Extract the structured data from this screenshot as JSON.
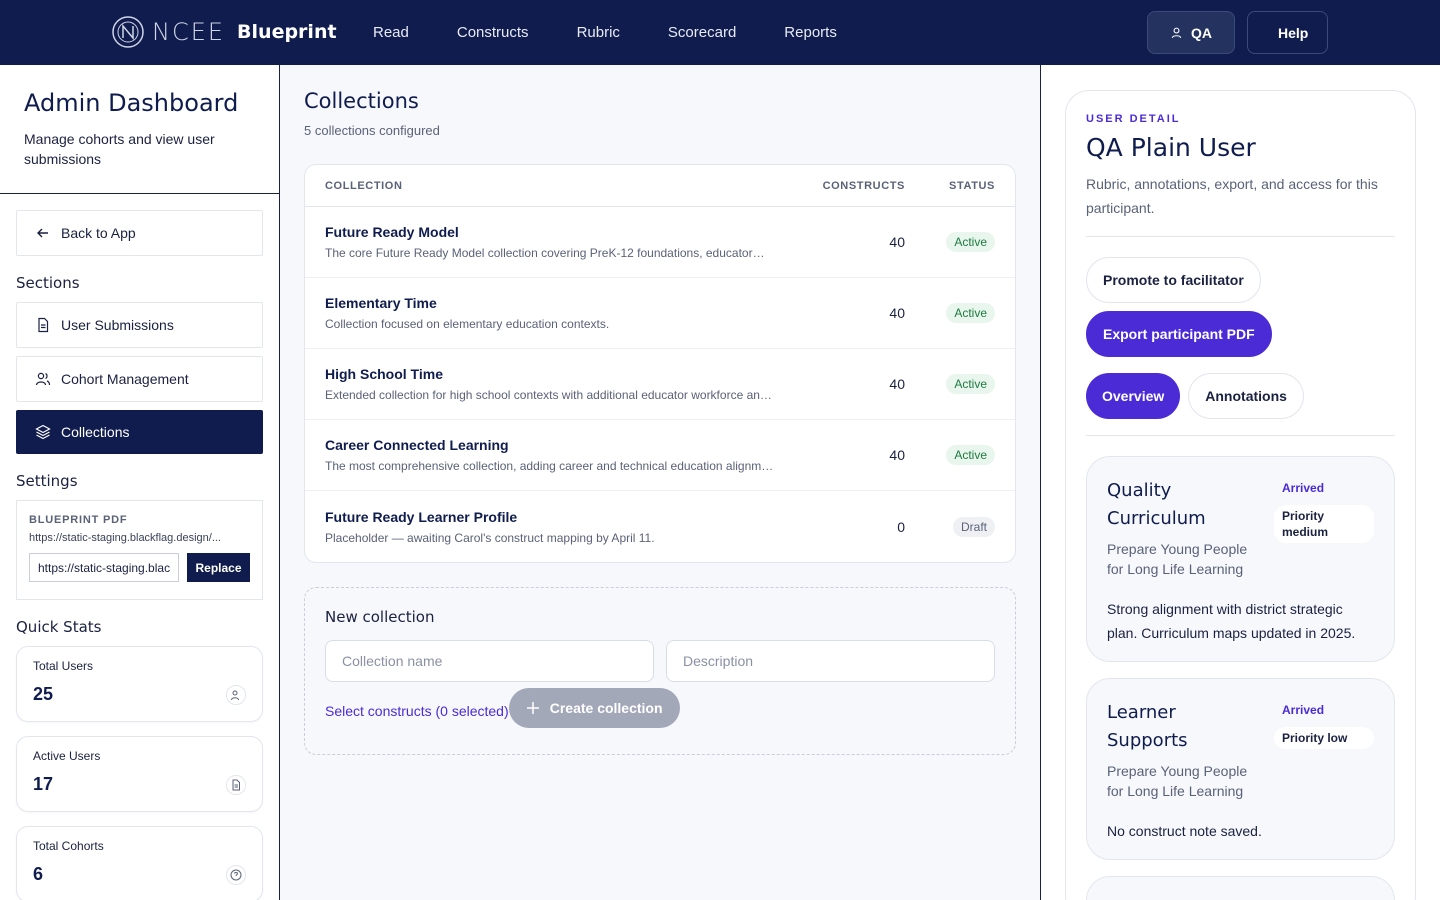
{
  "brand": {
    "ncee": "NCEE",
    "product": "Blueprint"
  },
  "nav": [
    "Read",
    "Constructs",
    "Rubric",
    "Scorecard",
    "Reports"
  ],
  "top_buttons": {
    "qa": "QA",
    "help": "Help"
  },
  "sidebar": {
    "title": "Admin Dashboard",
    "subtitle": "Manage cohorts and view user submissions",
    "back": "Back to App",
    "sections_heading": "Sections",
    "sections": [
      "User Submissions",
      "Cohort Management",
      "Collections"
    ],
    "active_section": "Collections",
    "settings_heading": "Settings",
    "pdf": {
      "label": "BLUEPRINT PDF",
      "url": "https://static-staging.blackflag.design/...",
      "input_value": "https://static-staging.blackflag.design/",
      "replace": "Replace"
    },
    "quick_stats_heading": "Quick Stats",
    "stats": [
      {
        "label": "Total Users",
        "value": "25"
      },
      {
        "label": "Active Users",
        "value": "17"
      },
      {
        "label": "Total Cohorts",
        "value": "6"
      }
    ]
  },
  "main": {
    "title": "Collections",
    "subtitle": "5 collections configured",
    "columns": [
      "COLLECTION",
      "CONSTRUCTS",
      "STATUS"
    ],
    "rows": [
      {
        "name": "Future Ready Model",
        "desc": "The core Future Ready Model collection covering PreK-12 foundations, educator…",
        "constructs": "40",
        "status": "Active"
      },
      {
        "name": "Elementary Time",
        "desc": "Collection focused on elementary education contexts.",
        "constructs": "40",
        "status": "Active"
      },
      {
        "name": "High School Time",
        "desc": "Extended collection for high school contexts with additional educator workforce and…",
        "constructs": "40",
        "status": "Active"
      },
      {
        "name": "Career Connected Learning",
        "desc": "The most comprehensive collection, adding career and technical education alignment.",
        "constructs": "40",
        "status": "Active"
      },
      {
        "name": "Future Ready Learner Profile",
        "desc": "Placeholder — awaiting Carol's construct mapping by April 11.",
        "constructs": "0",
        "status": "Draft"
      }
    ],
    "new_collection": {
      "title": "New collection",
      "name_placeholder": "Collection name",
      "desc_placeholder": "Description",
      "select_link": "Select constructs (0 selected)",
      "create": "Create collection"
    }
  },
  "detail": {
    "label": "USER DETAIL",
    "name": "QA Plain User",
    "desc": "Rubric, annotations, export, and access for this participant.",
    "promote": "Promote to facilitator",
    "export": "Export participant PDF",
    "tabs": [
      "Overview",
      "Annotations"
    ],
    "cards": [
      {
        "title": "Quality Curriculum",
        "sub": "Prepare Young People for Long Life Learning",
        "status": "Arrived",
        "priority": "Priority medium",
        "note": "Strong alignment with district strategic plan. Curriculum maps updated in 2025."
      },
      {
        "title": "Learner Supports",
        "sub": "Prepare Young People for Long Life Learning",
        "status": "Arrived",
        "priority": "Priority low",
        "note": "No construct note saved."
      }
    ]
  },
  "colors": {
    "navy": "#0f1c4d",
    "accent": "#4b2bd6",
    "active_green": "#1f7a3f"
  }
}
